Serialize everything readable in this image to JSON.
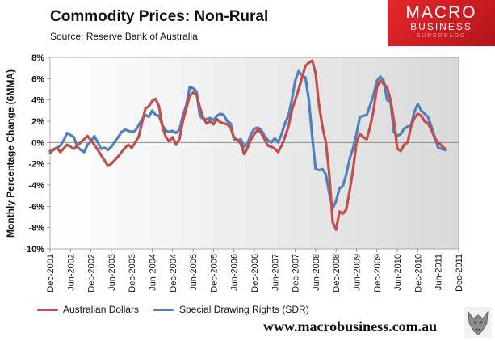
{
  "header": {
    "title": "Commodity  Prices: Non-Rural",
    "source": "Source:  Reserve Bank of Australia"
  },
  "logo": {
    "line1": "MACRO",
    "line2": "BUSINESS",
    "line3": "SUPERBLOG"
  },
  "footer": {
    "url": "www.macrobusiness.com.au",
    "wolf_icon": "wolf-mascot-icon"
  },
  "colors": {
    "aud": "#c0504d",
    "sdr": "#4f81bd",
    "logo_red": "#e4262b"
  },
  "chart_data": {
    "type": "line",
    "title": "Commodity  Prices: Non-Rural",
    "xlabel": "",
    "ylabel": "Monthly Percentage Change (6MMA)",
    "ylim": [
      -10,
      8
    ],
    "yticks": [
      -10,
      -8,
      -6,
      -4,
      -2,
      0,
      2,
      4,
      6,
      8
    ],
    "ytick_labels": [
      "-10%",
      "-8%",
      "-6%",
      "-4%",
      "-2%",
      "0%",
      "2%",
      "4%",
      "6%",
      "8%"
    ],
    "x_start": "Dec-2001",
    "x_end": "Dec-2011",
    "x_tick_labels": [
      "Dec-2001",
      "Jun-2002",
      "Dec-2002",
      "Jun-2003",
      "Dec-2003",
      "Jun-2004",
      "Dec-2004",
      "Jun-2005",
      "Dec-2005",
      "Jun-2006",
      "Dec-2006",
      "Jun-2007",
      "Dec-2007",
      "Jun-2008",
      "Dec-2008",
      "Jun-2009",
      "Dec-2009",
      "Jun-2010",
      "Dec-2010",
      "Jun-2011",
      "Dec-2011"
    ],
    "series": [
      {
        "name": "Australian Dollars",
        "color": "#c0504d",
        "points": [
          [
            0,
            -0.8
          ],
          [
            2,
            -0.5
          ],
          [
            3,
            -0.9
          ],
          [
            5,
            -0.2
          ],
          [
            7,
            -0.6
          ],
          [
            9,
            0.0
          ],
          [
            11,
            0.6
          ],
          [
            13,
            -0.2
          ],
          [
            15,
            -1.2
          ],
          [
            17,
            -2.2
          ],
          [
            18,
            -2.0
          ],
          [
            20,
            -1.3
          ],
          [
            22,
            -0.5
          ],
          [
            23,
            -0.2
          ],
          [
            24,
            -0.5
          ],
          [
            26,
            0.5
          ],
          [
            28,
            3.2
          ],
          [
            29,
            3.4
          ],
          [
            30,
            3.9
          ],
          [
            31,
            4.1
          ],
          [
            32,
            3.4
          ],
          [
            33,
            1.5
          ],
          [
            34,
            0.5
          ],
          [
            35,
            0.1
          ],
          [
            36,
            0.5
          ],
          [
            37,
            -0.2
          ],
          [
            38,
            0.3
          ],
          [
            39,
            2.0
          ],
          [
            40,
            3.2
          ],
          [
            41,
            4.4
          ],
          [
            42,
            4.7
          ],
          [
            43,
            4.5
          ],
          [
            44,
            3.3
          ],
          [
            45,
            2.3
          ],
          [
            46,
            1.8
          ],
          [
            47,
            2.0
          ],
          [
            48,
            1.7
          ],
          [
            49,
            2.2
          ],
          [
            50,
            1.9
          ],
          [
            51,
            1.8
          ],
          [
            52,
            1.7
          ],
          [
            53,
            1.4
          ],
          [
            54,
            0.5
          ],
          [
            55,
            0.2
          ],
          [
            56,
            -0.1
          ],
          [
            57,
            -1.1
          ],
          [
            58,
            -0.5
          ],
          [
            59,
            0.3
          ],
          [
            60,
            0.8
          ],
          [
            61,
            1.2
          ],
          [
            62,
            0.9
          ],
          [
            63,
            0.3
          ],
          [
            64,
            -0.3
          ],
          [
            65,
            -0.4
          ],
          [
            66,
            -0.6
          ],
          [
            67,
            -0.9
          ],
          [
            68,
            -0.3
          ],
          [
            69,
            0.5
          ],
          [
            70,
            1.5
          ],
          [
            71,
            3.0
          ],
          [
            72,
            4.0
          ],
          [
            73,
            5.0
          ],
          [
            74,
            6.1
          ],
          [
            75,
            7.2
          ],
          [
            76,
            7.5
          ],
          [
            77,
            7.7
          ],
          [
            78,
            6.5
          ],
          [
            79,
            3.5
          ],
          [
            80,
            1.5
          ],
          [
            81,
            0.0
          ],
          [
            82,
            -3.0
          ],
          [
            83,
            -7.5
          ],
          [
            84,
            -8.2
          ],
          [
            85,
            -6.5
          ],
          [
            86,
            -6.7
          ],
          [
            87,
            -6.3
          ],
          [
            88,
            -4.5
          ],
          [
            89,
            -2.5
          ],
          [
            90,
            0.0
          ],
          [
            91,
            0.8
          ],
          [
            92,
            0.5
          ],
          [
            93,
            0.3
          ],
          [
            94,
            1.5
          ],
          [
            95,
            3.0
          ],
          [
            96,
            5.2
          ],
          [
            97,
            5.8
          ],
          [
            98,
            5.5
          ],
          [
            99,
            5.2
          ],
          [
            100,
            4.0
          ],
          [
            101,
            2.0
          ],
          [
            102,
            -0.6
          ],
          [
            103,
            -0.8
          ],
          [
            104,
            -0.2
          ],
          [
            105,
            0.0
          ],
          [
            106,
            1.5
          ],
          [
            107,
            2.3
          ],
          [
            108,
            2.7
          ],
          [
            109,
            2.5
          ],
          [
            110,
            2.0
          ],
          [
            111,
            1.8
          ],
          [
            112,
            1.2
          ],
          [
            113,
            0.4
          ],
          [
            114,
            0.0
          ],
          [
            115,
            -0.3
          ],
          [
            116,
            -0.6
          ]
        ]
      },
      {
        "name": "Special Drawing Rights (SDR)",
        "color": "#4f81bd",
        "points": [
          [
            0,
            -1.0
          ],
          [
            1,
            -0.7
          ],
          [
            3,
            -0.3
          ],
          [
            4,
            0.2
          ],
          [
            5,
            0.9
          ],
          [
            6,
            0.7
          ],
          [
            7,
            0.5
          ],
          [
            8,
            -0.4
          ],
          [
            9,
            -0.7
          ],
          [
            10,
            -0.9
          ],
          [
            11,
            -0.2
          ],
          [
            12,
            0.1
          ],
          [
            13,
            0.6
          ],
          [
            14,
            0.0
          ],
          [
            15,
            -0.6
          ],
          [
            16,
            -0.5
          ],
          [
            17,
            -0.7
          ],
          [
            18,
            -0.4
          ],
          [
            20,
            0.5
          ],
          [
            21,
            1.0
          ],
          [
            22,
            1.2
          ],
          [
            23,
            1.1
          ],
          [
            24,
            1.0
          ],
          [
            25,
            1.1
          ],
          [
            26,
            1.6
          ],
          [
            27,
            2.2
          ],
          [
            28,
            2.6
          ],
          [
            29,
            2.4
          ],
          [
            30,
            3.0
          ],
          [
            31,
            2.6
          ],
          [
            32,
            2.5
          ],
          [
            33,
            1.6
          ],
          [
            34,
            1.1
          ],
          [
            35,
            1.0
          ],
          [
            36,
            1.1
          ],
          [
            37,
            0.9
          ],
          [
            38,
            1.2
          ],
          [
            39,
            2.5
          ],
          [
            40,
            3.5
          ],
          [
            41,
            5.2
          ],
          [
            42,
            5.1
          ],
          [
            43,
            4.8
          ],
          [
            44,
            2.5
          ],
          [
            45,
            2.2
          ],
          [
            46,
            2.2
          ],
          [
            47,
            2.3
          ],
          [
            48,
            2.1
          ],
          [
            49,
            2.5
          ],
          [
            50,
            2.7
          ],
          [
            51,
            2.6
          ],
          [
            52,
            2.0
          ],
          [
            53,
            1.8
          ],
          [
            54,
            0.3
          ],
          [
            55,
            0.2
          ],
          [
            56,
            0.3
          ],
          [
            57,
            -0.4
          ],
          [
            58,
            -0.1
          ],
          [
            59,
            0.8
          ],
          [
            60,
            1.3
          ],
          [
            61,
            1.4
          ],
          [
            62,
            1.2
          ],
          [
            63,
            0.6
          ],
          [
            64,
            0.2
          ],
          [
            65,
            0.0
          ],
          [
            66,
            0.4
          ],
          [
            67,
            0.0
          ],
          [
            68,
            0.8
          ],
          [
            69,
            1.8
          ],
          [
            70,
            2.5
          ],
          [
            71,
            4.0
          ],
          [
            72,
            5.8
          ],
          [
            73,
            6.7
          ],
          [
            74,
            6.3
          ],
          [
            75,
            6.1
          ],
          [
            76,
            4.0
          ],
          [
            77,
            0.5
          ],
          [
            78,
            -2.5
          ],
          [
            79,
            -2.6
          ],
          [
            80,
            -2.5
          ],
          [
            81,
            -3.0
          ],
          [
            82,
            -4.8
          ],
          [
            83,
            -6.2
          ],
          [
            84,
            -5.5
          ],
          [
            85,
            -4.3
          ],
          [
            86,
            -4.1
          ],
          [
            87,
            -3.0
          ],
          [
            88,
            -1.5
          ],
          [
            89,
            -0.5
          ],
          [
            90,
            0.8
          ],
          [
            91,
            2.4
          ],
          [
            92,
            2.5
          ],
          [
            93,
            2.6
          ],
          [
            94,
            3.5
          ],
          [
            95,
            4.5
          ],
          [
            96,
            5.8
          ],
          [
            97,
            6.2
          ],
          [
            98,
            5.8
          ],
          [
            99,
            4.0
          ],
          [
            100,
            3.8
          ],
          [
            101,
            1.0
          ],
          [
            102,
            0.6
          ],
          [
            103,
            0.8
          ],
          [
            104,
            1.3
          ],
          [
            105,
            1.5
          ],
          [
            106,
            1.6
          ],
          [
            107,
            2.9
          ],
          [
            108,
            3.6
          ],
          [
            109,
            3.0
          ],
          [
            110,
            2.7
          ],
          [
            111,
            2.4
          ],
          [
            112,
            1.5
          ],
          [
            113,
            0.5
          ],
          [
            114,
            -0.5
          ],
          [
            115,
            -0.6
          ],
          [
            116,
            -0.7
          ]
        ]
      }
    ]
  }
}
